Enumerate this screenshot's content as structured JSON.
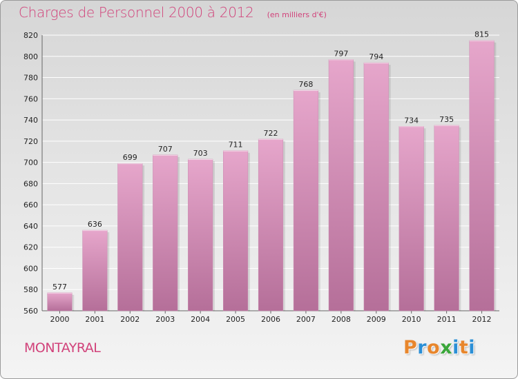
{
  "header": {
    "title": "Charges de Personnel 2000 à 2012",
    "unit": "(en milliers d'€)"
  },
  "footer": {
    "commune": "MONTAYRAL",
    "logo": {
      "letters": [
        "P",
        "r",
        "o",
        "x",
        "i",
        "t",
        "i"
      ],
      "colors": [
        "#e8862c",
        "#2b8fd6",
        "#e8862c",
        "#3aa63a",
        "#2b8fd6",
        "#e8862c",
        "#2b8fd6"
      ]
    }
  },
  "colors": {
    "text_accent": "#d1427a",
    "bar_top": "#e6a6cb",
    "bar_bottom": "#b56f99",
    "gridline": "#ffffff"
  },
  "chart_data": {
    "type": "bar",
    "title": "Charges de Personnel 2000 à 2012",
    "categories": [
      "2000",
      "2001",
      "2002",
      "2003",
      "2004",
      "2005",
      "2006",
      "2007",
      "2008",
      "2009",
      "2010",
      "2011",
      "2012"
    ],
    "values": [
      577,
      636,
      699,
      707,
      703,
      711,
      722,
      768,
      797,
      794,
      734,
      735,
      815
    ],
    "xlabel": "",
    "ylabel": "",
    "ylim": [
      560,
      820
    ],
    "yticks": [
      560,
      580,
      600,
      620,
      640,
      660,
      680,
      700,
      720,
      740,
      760,
      780,
      800,
      820
    ],
    "grid": true,
    "legend": "none"
  }
}
